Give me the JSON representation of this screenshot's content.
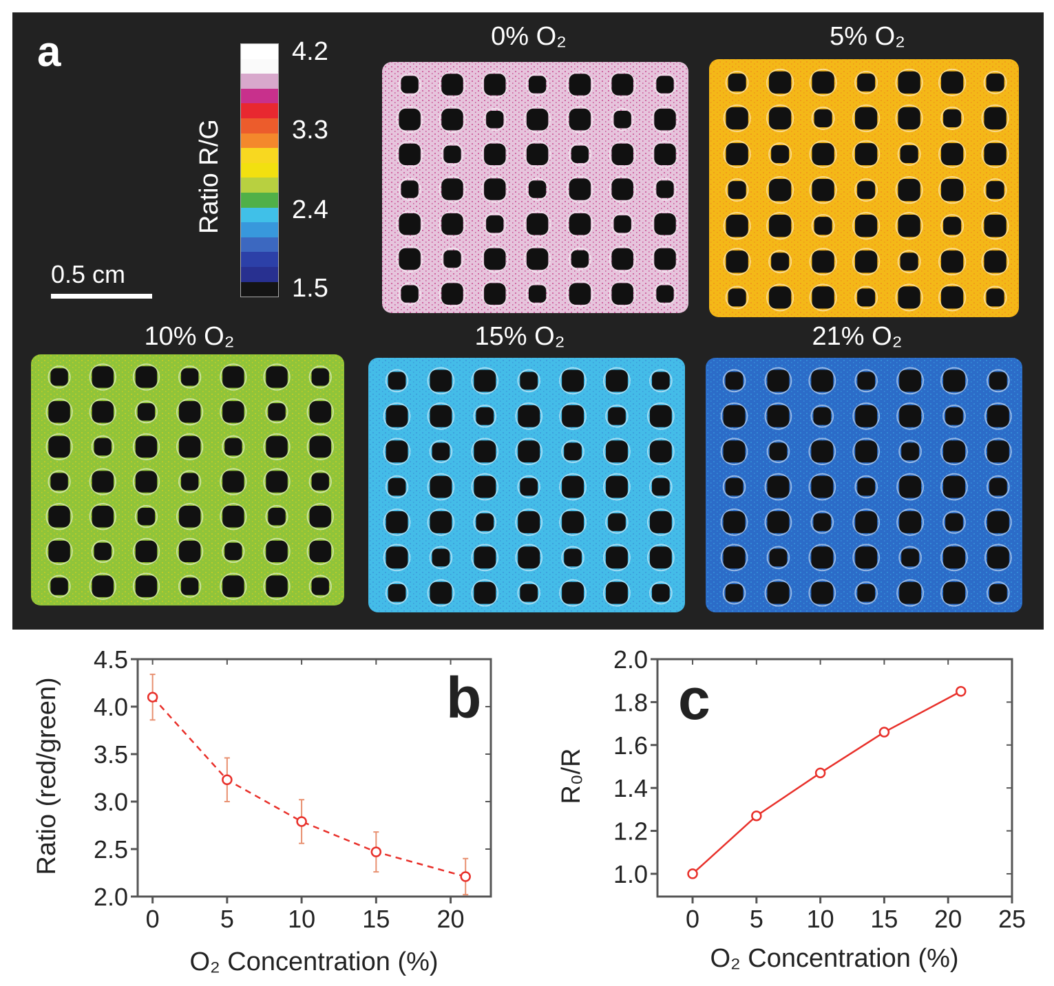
{
  "panel_a": {
    "letter": "a",
    "colorbar": {
      "label": "Ratio R/G",
      "ticks": [
        "4.2",
        "3.3",
        "2.4",
        "1.5"
      ],
      "colors": [
        "#ffffff",
        "#fafafa",
        "#d8a8cc",
        "#c8308c",
        "#e82830",
        "#ec5c2c",
        "#f4882c",
        "#f8d820",
        "#f2e010",
        "#b8d040",
        "#50b048",
        "#40c0e8",
        "#3898dc",
        "#3c68c0",
        "#2c40a8",
        "#283090",
        "#141414"
      ]
    },
    "scale_bar": "0.5 cm",
    "panels": [
      {
        "title": "0% O₂",
        "base": "#e6c4dc",
        "speckle": "#c0287c"
      },
      {
        "title": "5% O₂",
        "base": "#f4b818",
        "speckle": "#f08a1c"
      },
      {
        "title": "10% O₂",
        "base": "#90c43a",
        "speckle": "#d8d020"
      },
      {
        "title": "15% O₂",
        "base": "#44bce8",
        "speckle": "#3a90d8"
      },
      {
        "title": "21% O₂",
        "base": "#2c6cc8",
        "speckle": "#3a9ce0"
      }
    ]
  },
  "chart_data": [
    {
      "type": "scatter",
      "panel_letter": "b",
      "xlabel": "O₂ Concentration (%)",
      "ylabel": "Ratio (red/green)",
      "x": [
        0,
        5,
        10,
        15,
        21
      ],
      "y": [
        4.1,
        3.23,
        2.79,
        2.47,
        2.21
      ],
      "yerr": [
        0.24,
        0.23,
        0.23,
        0.21,
        0.19
      ],
      "fit": "dashed exponential decay",
      "xlim": [
        -1,
        22.7
      ],
      "ylim": [
        2.0,
        4.5
      ],
      "xticks": [
        "0",
        "5",
        "10",
        "15",
        "20"
      ],
      "yticks": [
        "2.0",
        "2.5",
        "3.0",
        "3.5",
        "4.0",
        "4.5"
      ],
      "color": "#e8302a",
      "grid": false
    },
    {
      "type": "line",
      "panel_letter": "c",
      "xlabel": "O₂ Concentration (%)",
      "ylabel": "R₀/R",
      "x": [
        0,
        5,
        10,
        15,
        21
      ],
      "y": [
        1.0,
        1.27,
        1.47,
        1.66,
        1.85
      ],
      "xlim": [
        -2.75,
        25
      ],
      "ylim": [
        0.894,
        2.0
      ],
      "xticks": [
        "0",
        "5",
        "10",
        "15",
        "20",
        "25"
      ],
      "yticks": [
        "1.0",
        "1.2",
        "1.4",
        "1.6",
        "1.8",
        "2.0"
      ],
      "color": "#e8302a",
      "grid": false
    }
  ]
}
